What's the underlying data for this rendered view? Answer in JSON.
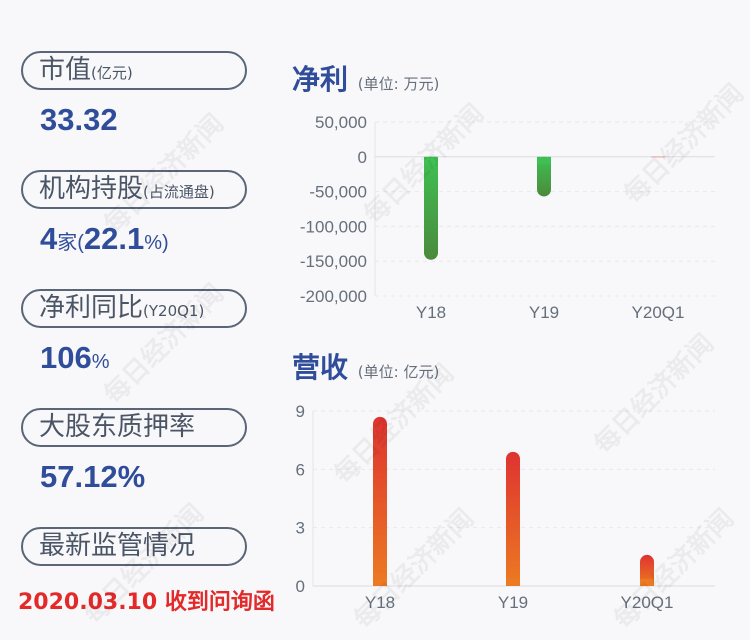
{
  "left_panel": {
    "items": [
      {
        "label": "市值",
        "sub": "(亿元)",
        "value": "33.32"
      },
      {
        "label": "机构持股",
        "sub": "(占流通盘)",
        "value_num": "4",
        "value_unit": "家",
        "value_paren_open": "(",
        "value_pct": "22.1",
        "value_pct_unit": "%)"
      },
      {
        "label": "净利同比",
        "sub": "(Y20Q1)",
        "value": "106",
        "value_unit": "%"
      },
      {
        "label": "大股东质押率",
        "value": "57.12%"
      },
      {
        "label": "最新监管情况",
        "value": "2020.03.10 收到问询函"
      }
    ]
  },
  "colors": {
    "title": "#2f4d9a",
    "alert": "#e32a2a",
    "profit_bar": "#3fba50",
    "revenue_bar": "#e8732a"
  },
  "watermark": "每日经济新闻",
  "chart_data": [
    {
      "type": "bar",
      "title": "净利",
      "subtitle": "(单位: 万元)",
      "categories": [
        "Y18",
        "Y19",
        "Y20Q1"
      ],
      "values": [
        -148000,
        -57000,
        500
      ],
      "ylim": [
        -200000,
        50000
      ],
      "yticks": [
        "50,000",
        "0",
        "-50,000",
        "-100,000",
        "-150,000",
        "-200,000"
      ],
      "ytick_values": [
        50000,
        0,
        -50000,
        -100000,
        -150000,
        -200000
      ],
      "grid": true
    },
    {
      "type": "bar",
      "title": "营收",
      "subtitle": "(单位: 亿元)",
      "categories": [
        "Y18",
        "Y19",
        "Y20Q1"
      ],
      "values": [
        8.7,
        6.9,
        1.6
      ],
      "ylim": [
        0,
        9
      ],
      "yticks": [
        "9",
        "6",
        "3",
        "0"
      ],
      "ytick_values": [
        9,
        6,
        3,
        0
      ],
      "grid": true
    }
  ]
}
